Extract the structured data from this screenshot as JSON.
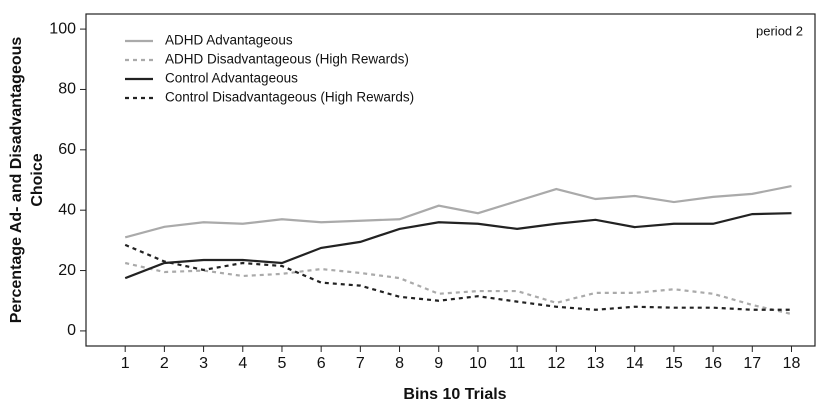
{
  "chart_data": {
    "type": "line",
    "xlabel": "Bins 10 Trials",
    "ylabel": [
      "Percentage Ad- and Disadvantageous",
      "Choice"
    ],
    "annotation": "period 2",
    "x": [
      1,
      2,
      3,
      4,
      5,
      6,
      7,
      8,
      9,
      10,
      11,
      12,
      13,
      14,
      15,
      16,
      17,
      18
    ],
    "xlim": [
      0,
      18.6
    ],
    "xticks": [
      1,
      2,
      3,
      4,
      5,
      6,
      7,
      8,
      9,
      10,
      11,
      12,
      13,
      14,
      15,
      16,
      17,
      18
    ],
    "ylim": [
      -5,
      105
    ],
    "yticks": [
      0,
      20,
      40,
      60,
      80,
      100
    ],
    "legend": "upper left",
    "series": [
      {
        "name": "ADHD Advantageous",
        "color": "#aaaaaa",
        "style": "solid",
        "values": [
          31,
          34.5,
          36,
          35.5,
          37,
          36,
          36.5,
          37,
          41.5,
          39,
          43,
          47,
          43.7,
          44.7,
          42.7,
          44.4,
          45.4,
          48
        ]
      },
      {
        "name": "ADHD Disadvantageous (High Rewards)",
        "color": "#aaaaaa",
        "style": "dashed",
        "values": [
          22.5,
          19.5,
          20,
          18.2,
          18.9,
          20.5,
          19.2,
          17.5,
          12.3,
          13.2,
          13.2,
          9.3,
          12.6,
          12.6,
          13.8,
          12.3,
          8.6,
          5.6
        ]
      },
      {
        "name": "Control Advantageous",
        "color": "#222222",
        "style": "solid",
        "values": [
          17.5,
          22.5,
          23.5,
          23.5,
          22.5,
          27.5,
          29.5,
          33.8,
          36,
          35.5,
          33.8,
          35.5,
          36.8,
          34.4,
          35.5,
          35.5,
          38.7,
          39
        ]
      },
      {
        "name": "Control Disadvantageous (High Rewards)",
        "color": "#222222",
        "style": "dashed",
        "values": [
          28.5,
          23,
          20.2,
          22.5,
          21.5,
          16,
          15,
          11.3,
          10,
          11.5,
          9.7,
          8,
          7,
          8,
          7.7,
          7.7,
          7,
          7
        ]
      }
    ]
  }
}
